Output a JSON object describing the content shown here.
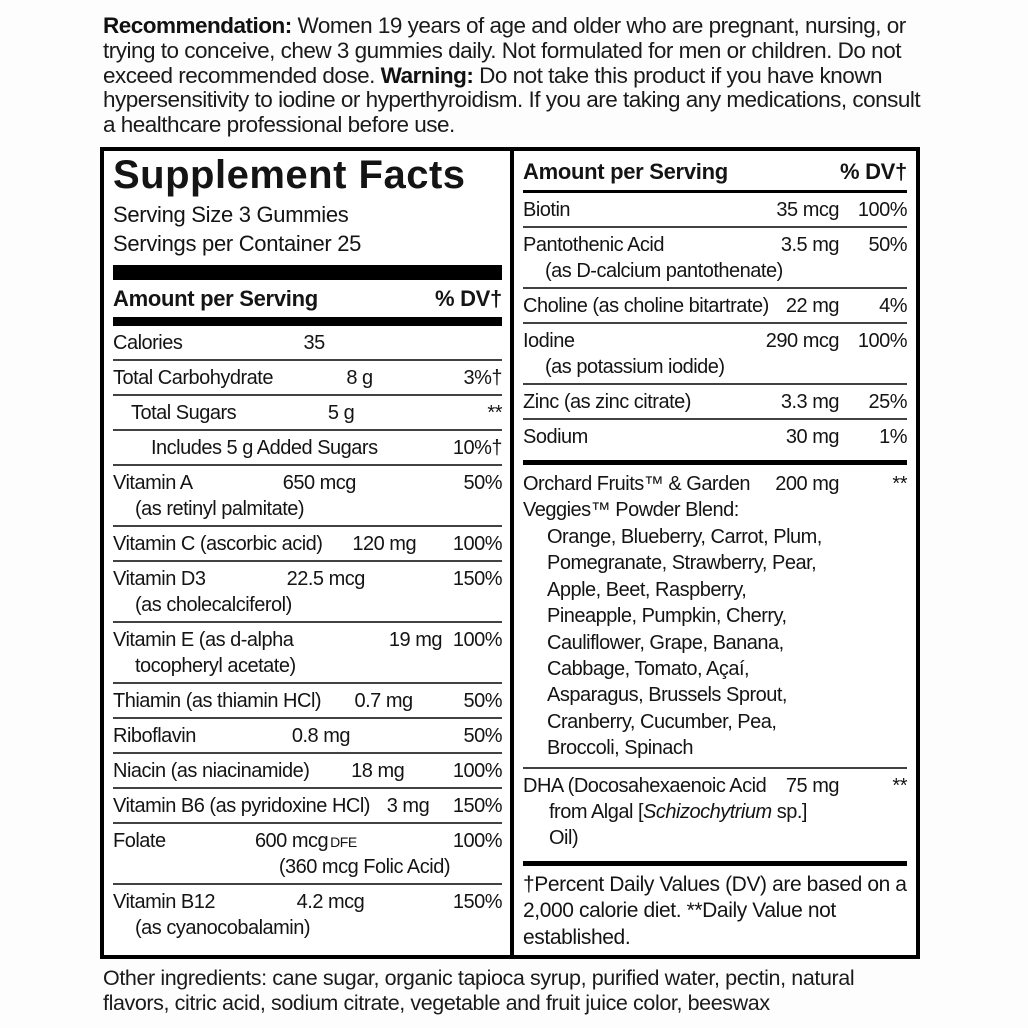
{
  "recommendation": {
    "label": "Recommendation:",
    "text_after_label": " Women 19 years of age and older who are pregnant, nursing, or trying to conceive, chew 3 gummies daily. Not formulated for men or children. Do not exceed recommended dose. ",
    "warning_label": "Warning:",
    "warning_text": " Do not take this product if you have known hypersensitivity to iodine or hyperthyroidism. If you are taking any medications, consult a healthcare professional before use."
  },
  "supplement_facts": {
    "title": "Supplement Facts",
    "serving_size": "Serving Size 3 Gummies",
    "servings_per_container": "Servings per Container 25",
    "header": {
      "amount_label": "Amount per Serving",
      "dv_label": "% DV†"
    },
    "left_rows": [
      {
        "name": "Calories",
        "amount": "35",
        "dv": ""
      },
      {
        "name": "Total Carbohydrate",
        "amount": "8 g",
        "dv": "3%†"
      },
      {
        "name": "Total Sugars",
        "amount": "5 g",
        "dv": "**",
        "indent": 1
      },
      {
        "name": "Includes 5 g Added Sugars",
        "amount": "",
        "dv": "10%†",
        "indent": 2
      },
      {
        "name": "Vitamin A",
        "sub": "(as retinyl palmitate)",
        "amount": "650 mcg",
        "dv": "50%"
      },
      {
        "name": "Vitamin C (ascorbic acid)",
        "amount": "120 mg",
        "dv": "100%"
      },
      {
        "name": "Vitamin D3",
        "sub": "(as cholecalciferol)",
        "amount": "22.5 mcg",
        "dv": "150%"
      },
      {
        "name": "Vitamin E (as d-alpha tocopheryl acetate)",
        "amount": "19 mg",
        "dv": "100%"
      },
      {
        "name": "Thiamin (as thiamin HCl)",
        "amount": "0.7 mg",
        "dv": "50%"
      },
      {
        "name": "Riboflavin",
        "amount": "0.8 mg",
        "dv": "50%"
      },
      {
        "name": "Niacin (as niacinamide)",
        "amount": "18 mg",
        "dv": "100%"
      },
      {
        "name": "Vitamin B6 (as pyridoxine HCl)",
        "amount": "3 mg",
        "dv": "150%"
      },
      {
        "name": "Folate",
        "amount": "600 mcg",
        "amount_note": "DFE",
        "dv": "100%",
        "sub_right": "(360 mcg Folic Acid)"
      },
      {
        "name": "Vitamin B12",
        "sub": "(as cyanocobalamin)",
        "amount": "4.2 mcg",
        "dv": "150%"
      }
    ],
    "right_rows": [
      {
        "name": "Biotin",
        "amount": "35 mcg",
        "dv": "100%"
      },
      {
        "name": "Pantothenic Acid",
        "sub": "(as D-calcium pantothenate)",
        "amount": "3.5 mg",
        "dv": "50%"
      },
      {
        "name": "Choline (as choline bitartrate)",
        "amount": "22 mg",
        "dv": "4%"
      },
      {
        "name": "Iodine",
        "sub": "(as potassium iodide)",
        "amount": "290 mcg",
        "dv": "100%"
      },
      {
        "name": "Zinc (as zinc citrate)",
        "amount": "3.3 mg",
        "dv": "25%"
      },
      {
        "name": "Sodium",
        "amount": "30 mg",
        "dv": "1%"
      }
    ],
    "blend": {
      "name": "Orchard Fruits™ & Garden Veggies™ Powder Blend:",
      "amount": "200 mg",
      "dv": "**",
      "ingredients": "Orange, Blueberry, Carrot, Plum, Pomegranate, Straw­berry, Pear, Apple, Beet, Rasp­berry, Pineapple, Pumpkin, Cherry, Cauliflower, Grape, Banana, Cabbage, Tomato, Açaí, Asparagus, Brussels Sprout, Cranberry, Cucumber, Pea, Broccoli, Spinach"
    },
    "dha": {
      "name": "DHA (Docosahexaenoic Acid",
      "amount": "75 mg",
      "dv": "**",
      "sub_prefix": "from Algal [",
      "sub_italic": "Schizochytrium",
      "sub_suffix": " sp.] Oil)"
    },
    "footnote": "†Percent Daily Values (DV) are based on a 2,000 calorie diet. **Daily Value not established."
  },
  "other_ingredients": {
    "text": "Other ingredients: cane sugar, organic tapioca syrup, purified water, pectin, natural flavors, citric acid, sodium citrate, vegetable and fruit juice color, beeswax"
  }
}
